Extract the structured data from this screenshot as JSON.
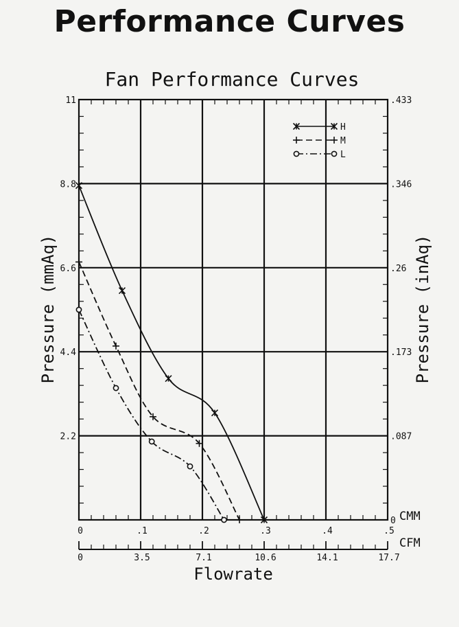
{
  "page_title": "Performance Curves",
  "colors": {
    "ink": "#111111",
    "paper": "#f4f4f2"
  },
  "chart_data": {
    "type": "line",
    "title": "Fan Performance Curves",
    "xlabel": "Flowrate",
    "ylabel_left": "Pressure (mmAq)",
    "ylabel_right": "Pressure (inAq)",
    "x_unit_primary": "CMM",
    "x_unit_secondary": "CFM",
    "xlim": [
      0,
      0.5
    ],
    "ylim": [
      0,
      11
    ],
    "grid": true,
    "legend_position": "top-right",
    "x_ticks": [
      {
        "value": 0,
        "label": "0"
      },
      {
        "value": 0.1,
        "label": ".1"
      },
      {
        "value": 0.2,
        "label": ".2"
      },
      {
        "value": 0.3,
        "label": ".3"
      },
      {
        "value": 0.4,
        "label": ".4"
      },
      {
        "value": 0.5,
        "label": ".5"
      }
    ],
    "cfm_ticks": [
      {
        "value": 0,
        "label": "0"
      },
      {
        "value": 0.1,
        "label": "3.5"
      },
      {
        "value": 0.2,
        "label": "7.1"
      },
      {
        "value": 0.3,
        "label": "10.6"
      },
      {
        "value": 0.4,
        "label": "14.1"
      },
      {
        "value": 0.5,
        "label": "17.7"
      }
    ],
    "y_ticks_left": [
      {
        "value": 2.2,
        "label": "2.2"
      },
      {
        "value": 4.4,
        "label": "4.4"
      },
      {
        "value": 6.6,
        "label": "6.6"
      },
      {
        "value": 8.8,
        "label": "8.8"
      },
      {
        "value": 11,
        "label": "11"
      }
    ],
    "y_ticks_right": [
      {
        "value": 0,
        "label": "0"
      },
      {
        "value": 2.2,
        "label": ".087"
      },
      {
        "value": 4.4,
        "label": ".173"
      },
      {
        "value": 6.6,
        "label": ".26"
      },
      {
        "value": 8.8,
        "label": ".346"
      },
      {
        "value": 11,
        "label": ".433"
      }
    ],
    "series": [
      {
        "name": "H",
        "marker": "star",
        "dash": "solid",
        "x": [
          0,
          0.07,
          0.145,
          0.22,
          0.3
        ],
        "y": [
          8.75,
          6.0,
          3.7,
          2.8,
          0
        ]
      },
      {
        "name": "M",
        "marker": "plus",
        "dash": "dash",
        "x": [
          0,
          0.06,
          0.12,
          0.195,
          0.26
        ],
        "y": [
          6.75,
          4.55,
          2.7,
          2.0,
          0
        ]
      },
      {
        "name": "L",
        "marker": "circle",
        "dash": "dashdot",
        "x": [
          0,
          0.06,
          0.118,
          0.18,
          0.235
        ],
        "y": [
          5.5,
          3.45,
          2.05,
          1.4,
          0
        ]
      }
    ]
  }
}
